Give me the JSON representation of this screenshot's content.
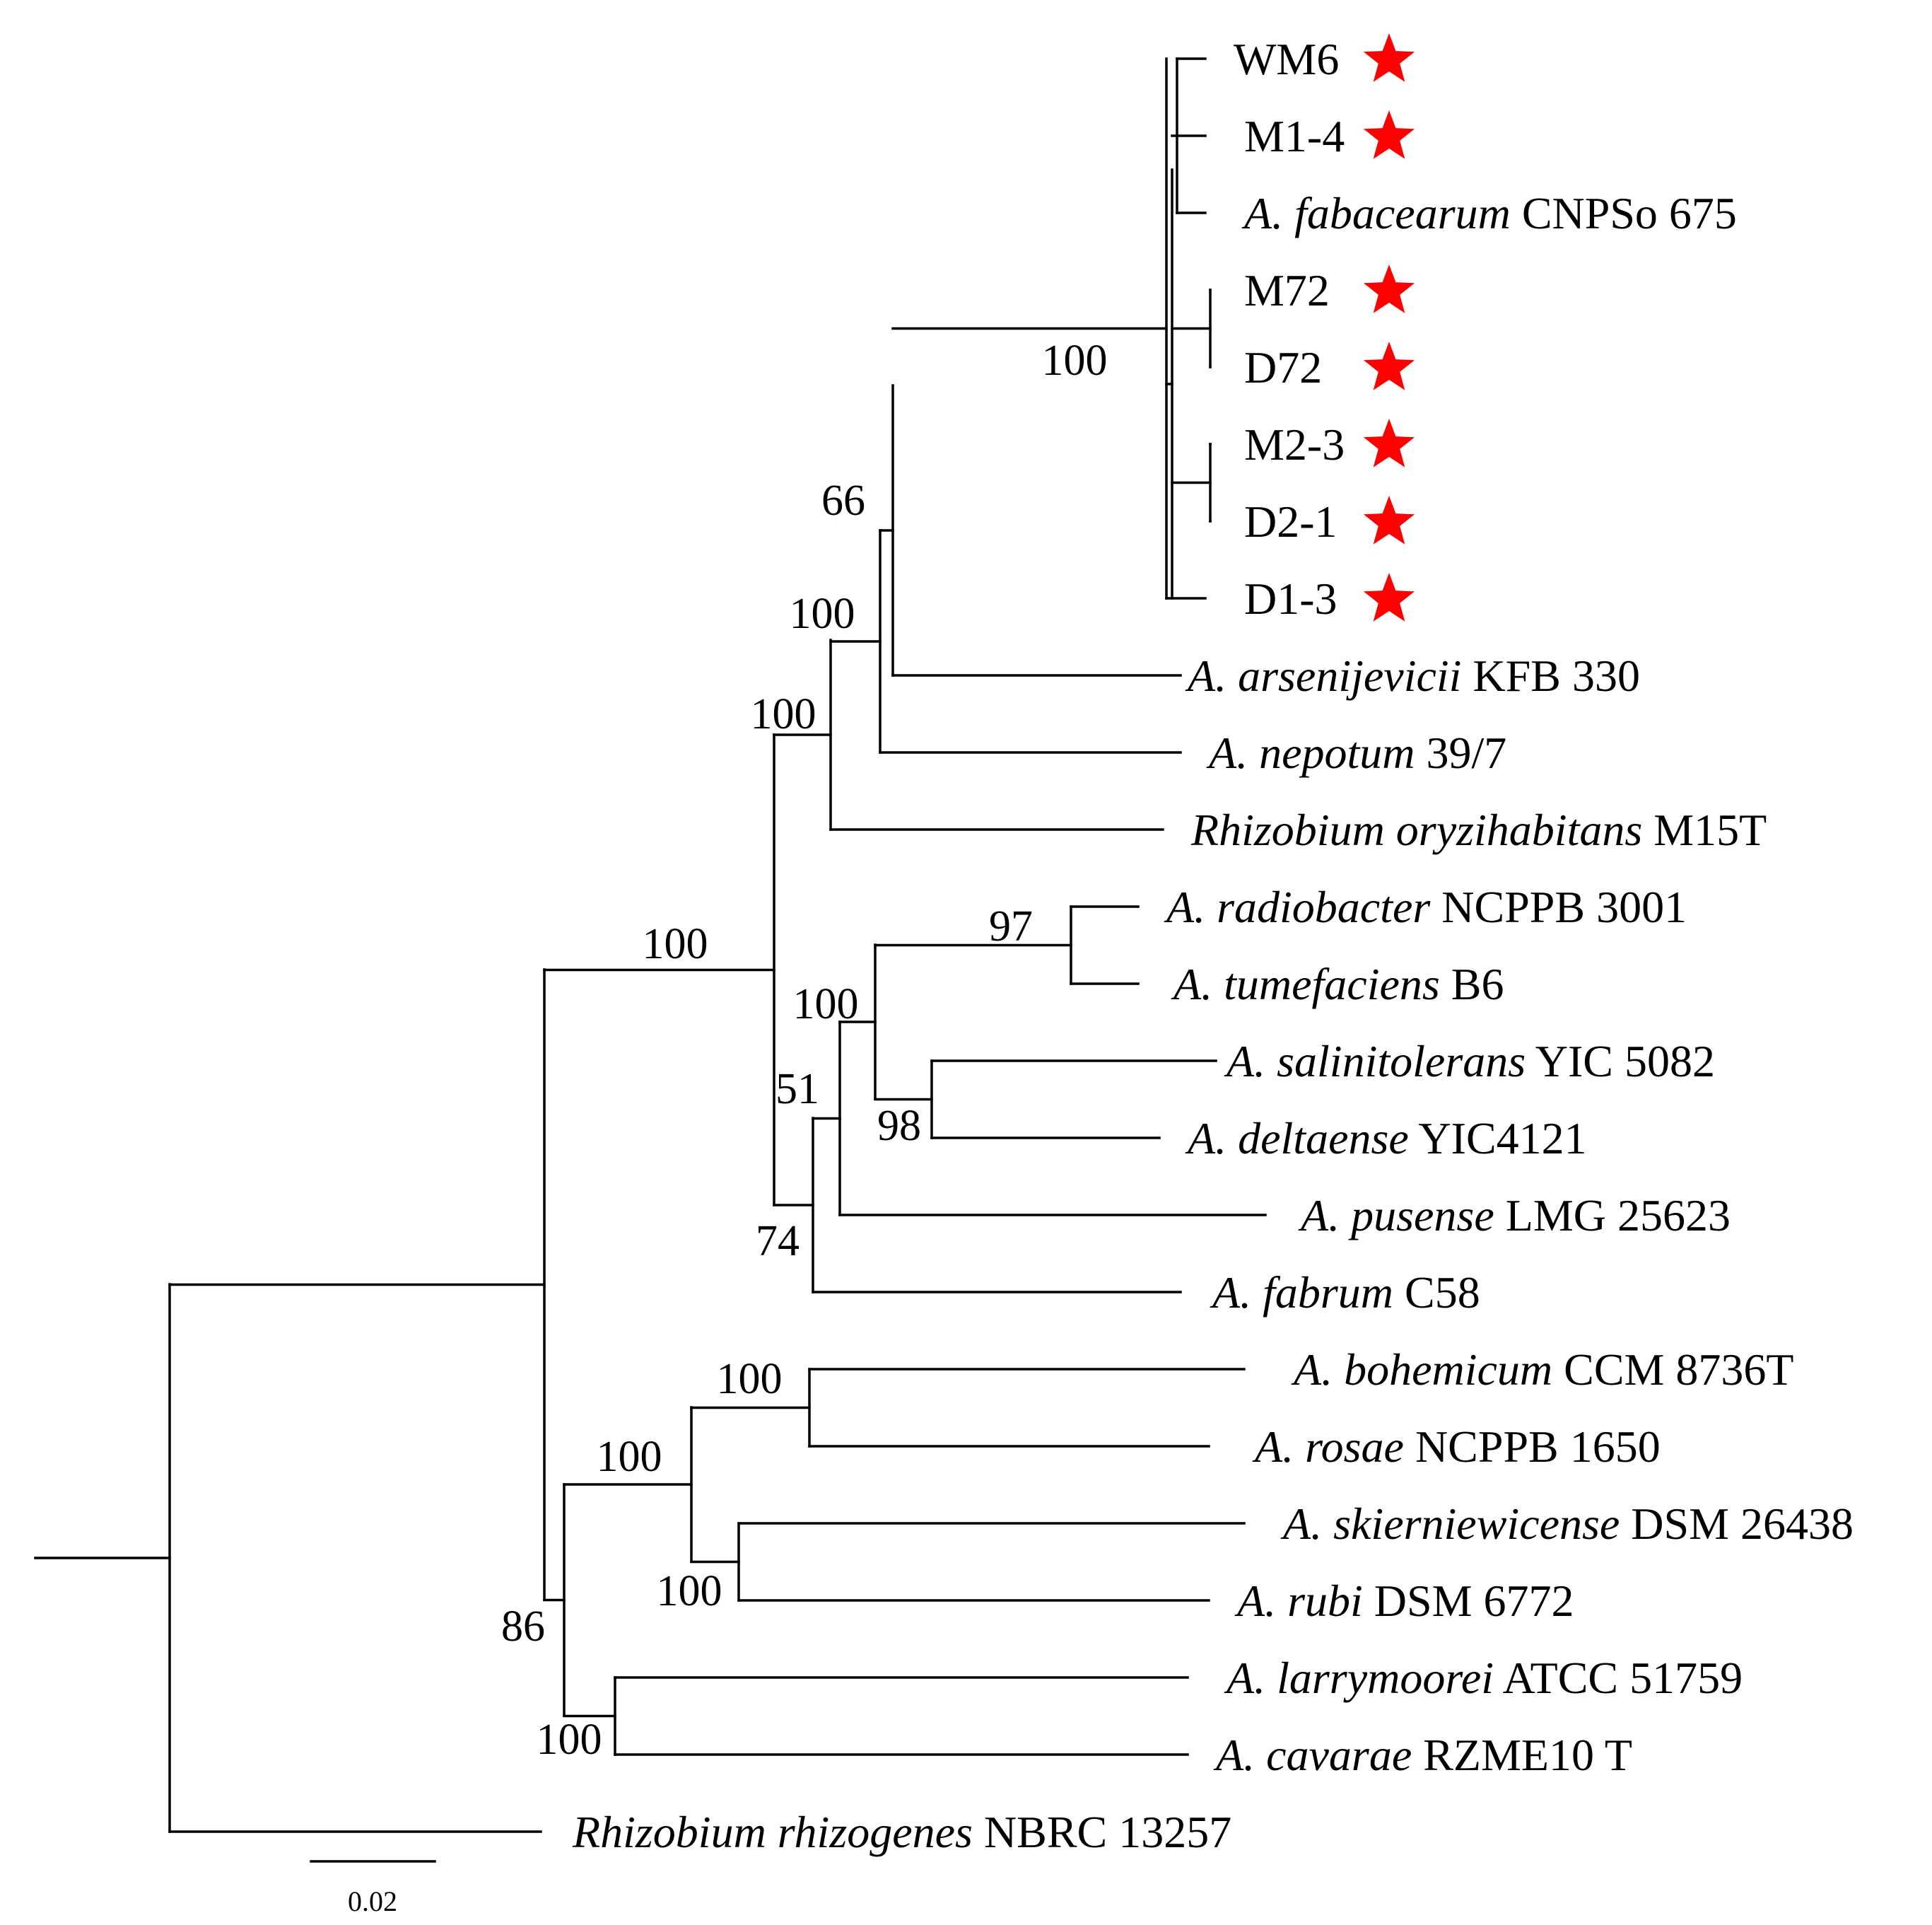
{
  "figure": {
    "kind": "phylogenetic-tree",
    "highlight_color": "#ff0000",
    "line_color": "#000000"
  },
  "taxa": [
    {
      "genus_species": "",
      "strain": "WM6",
      "highlight": true
    },
    {
      "genus_species": "",
      "strain": "M1-4",
      "highlight": true
    },
    {
      "genus_species": "A. fabacearum",
      "strain": "CNPSo 675",
      "highlight": false
    },
    {
      "genus_species": "",
      "strain": "M72",
      "highlight": true
    },
    {
      "genus_species": "",
      "strain": "D72",
      "highlight": true
    },
    {
      "genus_species": "",
      "strain": "M2-3",
      "highlight": true
    },
    {
      "genus_species": "",
      "strain": "D2-1",
      "highlight": true
    },
    {
      "genus_species": "",
      "strain": "D1-3",
      "highlight": true
    },
    {
      "genus_species": "A. arsenijevicii",
      "strain": "KFB 330",
      "highlight": false
    },
    {
      "genus_species": "A. nepotum",
      "strain": "39/7",
      "highlight": false
    },
    {
      "genus_species": "Rhizobium oryzihabitans",
      "strain": "M15T",
      "highlight": false
    },
    {
      "genus_species": "A. radiobacter",
      "strain": "NCPPB 3001",
      "highlight": false
    },
    {
      "genus_species": "A. tumefaciens",
      "strain": "B6",
      "highlight": false
    },
    {
      "genus_species": "A. salinitolerans",
      "strain": "YIC 5082",
      "highlight": false
    },
    {
      "genus_species": "A. deltaense",
      "strain": "YIC4121",
      "highlight": false
    },
    {
      "genus_species": "A. pusense",
      "strain": "LMG 25623",
      "highlight": false
    },
    {
      "genus_species": "A. fabrum",
      "strain": "C58",
      "highlight": false
    },
    {
      "genus_species": "A. bohemicum",
      "strain": "CCM 8736T",
      "highlight": false
    },
    {
      "genus_species": "A. rosae",
      "strain": "NCPPB 1650",
      "highlight": false
    },
    {
      "genus_species": "A. skierniewicense",
      "strain": "DSM 26438",
      "highlight": false
    },
    {
      "genus_species": "A. rubi",
      "strain": "DSM 6772",
      "highlight": false
    },
    {
      "genus_species": "A. larrymoorei",
      "strain": "ATCC 51759",
      "highlight": false
    },
    {
      "genus_species": "A. cavarae",
      "strain": "RZME10 T",
      "highlight": false
    },
    {
      "genus_species": "Rhizobium rhizogenes",
      "strain": "NBRC 13257",
      "highlight": false
    }
  ],
  "bootstrap": [
    {
      "node": "focal-clade",
      "value": "100"
    },
    {
      "node": "focal-plus-arsenijevicii",
      "value": "66"
    },
    {
      "node": "plus-nepotum",
      "value": "100"
    },
    {
      "node": "plus-oryzihabitans",
      "value": "100"
    },
    {
      "node": "upper-major-clade",
      "value": "100"
    },
    {
      "node": "radiobacter-tumefaciens",
      "value": "97"
    },
    {
      "node": "salinitolerans-deltaense",
      "value": "98"
    },
    {
      "node": "radiobacter-deltaense",
      "value": "100"
    },
    {
      "node": "plus-pusense",
      "value": "51"
    },
    {
      "node": "plus-fabrum",
      "value": "74"
    },
    {
      "node": "bohemicum-rosae",
      "value": "100"
    },
    {
      "node": "skierniewicense-rubi",
      "value": "100"
    },
    {
      "node": "bohemicum-rubi",
      "value": "100"
    },
    {
      "node": "larrymoorei-cavarae",
      "value": "100"
    },
    {
      "node": "lower-major-clade",
      "value": "86"
    }
  ],
  "scale_bar": {
    "label": "0.02"
  }
}
